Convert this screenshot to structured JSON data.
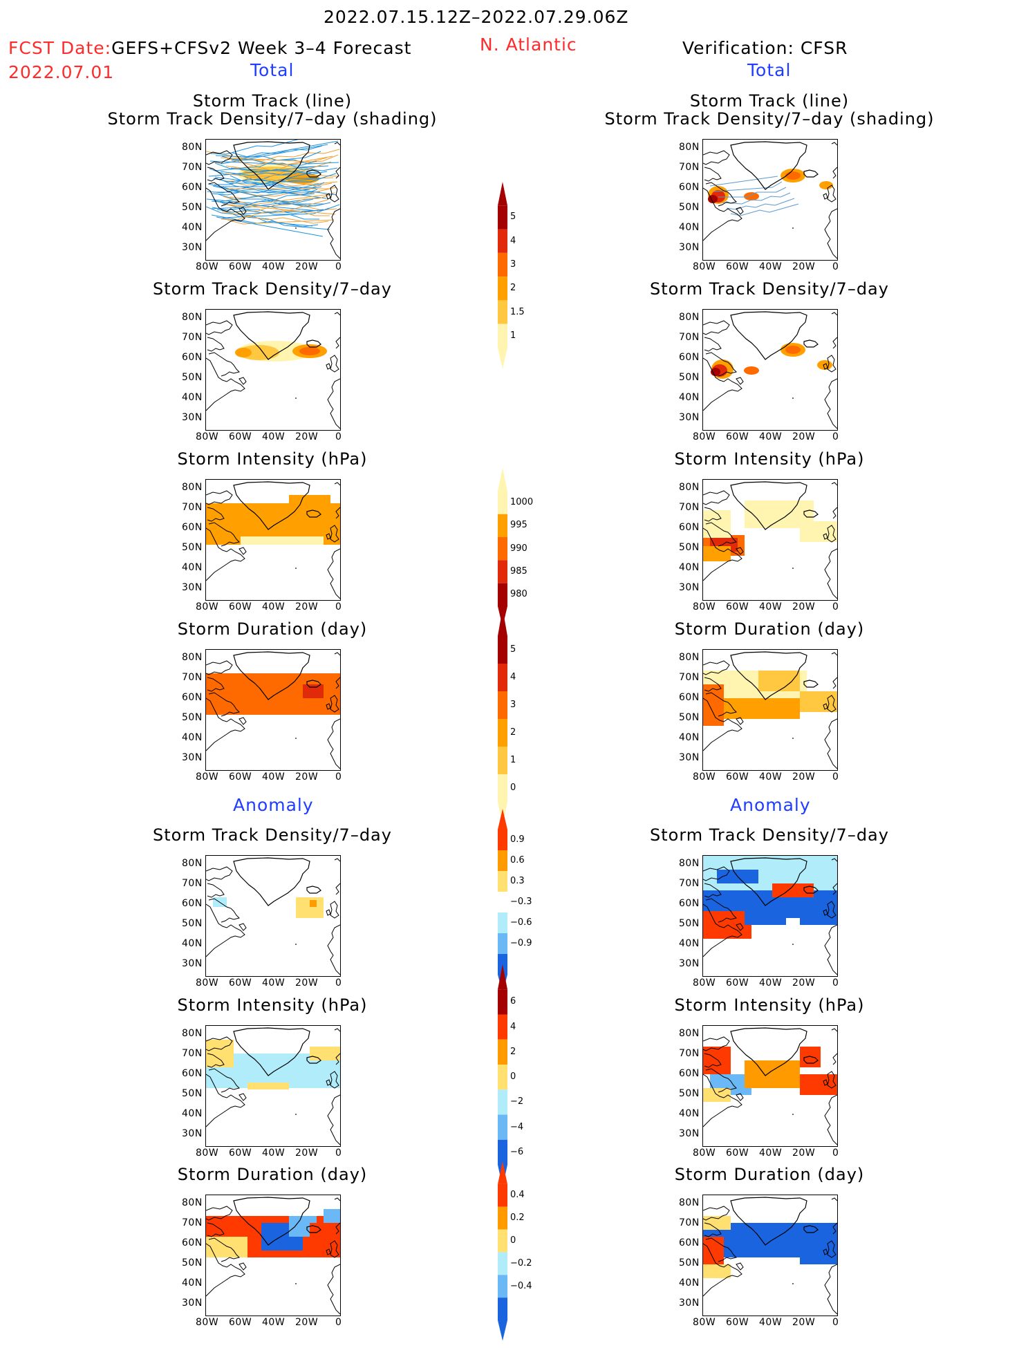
{
  "header": {
    "period": "2022.07.15.12Z–2022.07.29.06Z",
    "fcst_label": "FCST Date:",
    "model": "GEFS+CFSv2 Week 3–4 Forecast",
    "fcst_date": "2022.07.01",
    "region": "N. Atlantic",
    "verification": "Verification: CFSR"
  },
  "sections": {
    "total": "Total",
    "anomaly": "Anomaly"
  },
  "axes": {
    "lat_ticks": [
      "80N",
      "70N",
      "60N",
      "50N",
      "40N",
      "30N"
    ],
    "lon_ticks": [
      "80W",
      "60W",
      "40W",
      "20W",
      "0"
    ]
  },
  "panel_titles": {
    "track_line": "Storm Track (line)",
    "track_shading": "Storm Track Density/7–day (shading)",
    "density": "Storm Track Density/7–day",
    "intensity": "Storm Intensity (hPa)",
    "duration": "Storm Duration (day)"
  },
  "colorbars": {
    "density_total": {
      "labels": [
        "5",
        "4",
        "3",
        "2",
        "1.5",
        "1"
      ],
      "colors": [
        "#a50000",
        "#e02a0a",
        "#ff6a00",
        "#ffa000",
        "#ffc840",
        "#fff5b0"
      ]
    },
    "intensity_total": {
      "labels": [
        "1000",
        "995",
        "990",
        "985",
        "980"
      ],
      "colors": [
        "#fff5b0",
        "#ffa000",
        "#ff6a00",
        "#e02a0a",
        "#a50000"
      ]
    },
    "duration_total": {
      "labels": [
        "5",
        "4",
        "3",
        "2",
        "1",
        "0"
      ],
      "colors": [
        "#a50000",
        "#e02a0a",
        "#ff6a00",
        "#ffa000",
        "#ffc840",
        "#fff5b0"
      ]
    },
    "density_anom": {
      "labels": [
        "0.9",
        "0.6",
        "0.3",
        "−0.3",
        "−0.6",
        "−0.9"
      ],
      "colors": [
        "#ff3a00",
        "#ff9a00",
        "#ffe070",
        "#ffffff",
        "#b0ecfa",
        "#6ab8f5",
        "#1a64e0"
      ]
    },
    "intensity_anom": {
      "labels": [
        "6",
        "4",
        "2",
        "0",
        "−2",
        "−4",
        "−6"
      ],
      "colors": [
        "#a50000",
        "#ff3a00",
        "#ff9a00",
        "#ffe070",
        "#b0ecfa",
        "#6ab8f5",
        "#1a64e0"
      ]
    },
    "duration_anom": {
      "labels": [
        "0.4",
        "0.2",
        "0",
        "−0.2",
        "−0.4"
      ],
      "colors": [
        "#ff3a00",
        "#ff9a00",
        "#ffe070",
        "#b0ecfa",
        "#6ab8f5",
        "#1a64e0"
      ]
    }
  }
}
